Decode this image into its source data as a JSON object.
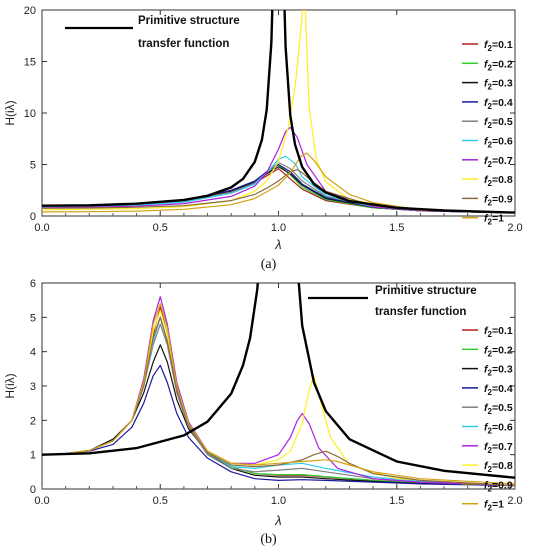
{
  "chart_data": [
    {
      "type": "line",
      "panel_caption": "(a)",
      "xlabel": "λ",
      "ylabel": "H(iλ)",
      "xlim": [
        0,
        2.0
      ],
      "ylim": [
        0,
        20
      ],
      "x_ticks": [
        "0.0",
        "0.5",
        "1.0",
        "1.5",
        "2.0"
      ],
      "y_ticks": [
        "0",
        "5",
        "10",
        "15",
        "20"
      ],
      "legend_position": "right",
      "primitive": {
        "label_line1": "Primitive structure",
        "label_line2": "transfer function",
        "color": "#000000",
        "x": [
          0,
          0.2,
          0.4,
          0.6,
          0.7,
          0.8,
          0.85,
          0.9,
          0.93,
          0.95,
          0.97,
          0.98
        ],
        "y": [
          1.0,
          1.04,
          1.19,
          1.56,
          1.96,
          2.78,
          3.6,
          5.26,
          7.4,
          10.3,
          16.9,
          25.3
        ],
        "x2": [
          1.02,
          1.03,
          1.05,
          1.07,
          1.1,
          1.15,
          1.2,
          1.3,
          1.5,
          1.7,
          2.0
        ],
        "y2": [
          24.8,
          16.4,
          9.76,
          6.9,
          4.76,
          3.1,
          2.27,
          1.45,
          0.8,
          0.53,
          0.33
        ]
      },
      "series": [
        {
          "name_base": "f",
          "name_sub": "2",
          "name_val": "=0.1",
          "color": "#b22222",
          "x": [
            0,
            0.2,
            0.4,
            0.6,
            0.8,
            0.9,
            0.95,
            1.0,
            1.05,
            1.1,
            1.2,
            1.4,
            1.6,
            2.0
          ],
          "y": [
            1.0,
            1.04,
            1.18,
            1.5,
            2.4,
            3.2,
            3.9,
            4.6,
            3.6,
            2.6,
            1.5,
            0.8,
            0.5,
            0.3
          ]
        },
        {
          "name_base": "f",
          "name_sub": "2",
          "name_val": "=0.2",
          "color": "#33cc33",
          "x": [
            0,
            0.2,
            0.4,
            0.6,
            0.8,
            0.9,
            0.95,
            1.0,
            1.05,
            1.1,
            1.2,
            1.4,
            1.6,
            2.0
          ],
          "y": [
            1.0,
            1.04,
            1.18,
            1.5,
            2.5,
            3.4,
            4.2,
            5.0,
            4.0,
            2.8,
            1.6,
            0.8,
            0.5,
            0.3
          ]
        },
        {
          "name_base": "f",
          "name_sub": "2",
          "name_val": "=0.3",
          "color": "#111111",
          "x": [
            0,
            0.2,
            0.4,
            0.6,
            0.8,
            0.9,
            0.95,
            1.0,
            1.05,
            1.1,
            1.2,
            1.4,
            1.6,
            2.0
          ],
          "y": [
            1.0,
            1.04,
            1.18,
            1.5,
            2.45,
            3.3,
            4.1,
            4.8,
            4.1,
            3.0,
            1.7,
            0.85,
            0.5,
            0.3
          ]
        },
        {
          "name_base": "f",
          "name_sub": "2",
          "name_val": "=0.4",
          "color": "#1a1a99",
          "x": [
            0,
            0.2,
            0.4,
            0.6,
            0.8,
            0.9,
            0.95,
            1.0,
            1.05,
            1.1,
            1.2,
            1.4,
            1.6,
            2.0
          ],
          "y": [
            1.0,
            1.04,
            1.18,
            1.5,
            2.5,
            3.4,
            4.3,
            5.0,
            4.3,
            3.1,
            1.8,
            0.85,
            0.5,
            0.3
          ]
        },
        {
          "name_base": "f",
          "name_sub": "2",
          "name_val": "=0.5",
          "color": "#808080",
          "x": [
            0,
            0.2,
            0.4,
            0.6,
            0.8,
            0.9,
            0.95,
            1.0,
            1.05,
            1.1,
            1.2,
            1.4,
            1.6,
            2.0
          ],
          "y": [
            0.95,
            1.0,
            1.12,
            1.45,
            2.3,
            3.2,
            4.2,
            5.2,
            4.6,
            3.4,
            1.9,
            0.9,
            0.5,
            0.3
          ]
        },
        {
          "name_base": "f",
          "name_sub": "2",
          "name_val": "=0.6",
          "color": "#33ccee",
          "x": [
            0,
            0.2,
            0.4,
            0.6,
            0.8,
            0.9,
            0.95,
            1.0,
            1.03,
            1.07,
            1.1,
            1.2,
            1.4,
            1.6,
            2.0
          ],
          "y": [
            0.9,
            0.95,
            1.05,
            1.35,
            2.2,
            3.1,
            4.2,
            5.5,
            5.8,
            5.1,
            3.8,
            2.0,
            0.9,
            0.5,
            0.3
          ]
        },
        {
          "name_base": "f",
          "name_sub": "2",
          "name_val": "=0.7",
          "color": "#aa22dd",
          "x": [
            0,
            0.2,
            0.4,
            0.6,
            0.8,
            0.9,
            0.95,
            1.0,
            1.03,
            1.05,
            1.08,
            1.12,
            1.2,
            1.4,
            1.6,
            2.0
          ],
          "y": [
            0.8,
            0.85,
            0.95,
            1.2,
            1.9,
            2.9,
            4.2,
            6.5,
            8.2,
            8.6,
            7.6,
            5.0,
            2.4,
            0.9,
            0.5,
            0.3
          ]
        },
        {
          "name_base": "f",
          "name_sub": "2",
          "name_val": "=0.8",
          "color": "#ffee22",
          "x": [
            0,
            0.2,
            0.4,
            0.6,
            0.8,
            0.9,
            0.95,
            1.0,
            1.04,
            1.07,
            1.09,
            1.11,
            1.13,
            1.16,
            1.2,
            1.3,
            1.5,
            2.0
          ],
          "y": [
            0.6,
            0.65,
            0.72,
            0.9,
            1.5,
            2.4,
            3.4,
            5.3,
            8.5,
            12.5,
            17.0,
            22.0,
            10.5,
            5.5,
            3.3,
            1.6,
            0.8,
            0.3
          ]
        },
        {
          "name_base": "f",
          "name_sub": "2",
          "name_val": "=0.9",
          "color": "#8b6b3a",
          "x": [
            0,
            0.2,
            0.4,
            0.6,
            0.8,
            0.9,
            0.95,
            1.0,
            1.05,
            1.08,
            1.1,
            1.13,
            1.2,
            1.4,
            1.6,
            2.0
          ],
          "y": [
            0.75,
            0.78,
            0.85,
            1.0,
            1.5,
            2.1,
            2.7,
            3.4,
            4.3,
            4.5,
            4.2,
            3.6,
            2.4,
            1.0,
            0.55,
            0.3
          ]
        },
        {
          "name_base": "f",
          "name_sub": "2",
          "name_val": "=1",
          "color": "#d4a017",
          "x": [
            0,
            0.2,
            0.4,
            0.6,
            0.8,
            0.9,
            1.0,
            1.05,
            1.08,
            1.1,
            1.12,
            1.15,
            1.2,
            1.3,
            1.4,
            1.6,
            2.0
          ],
          "y": [
            0.4,
            0.42,
            0.48,
            0.65,
            1.1,
            1.7,
            3.0,
            4.2,
            5.3,
            5.9,
            6.1,
            5.4,
            3.8,
            2.1,
            1.3,
            0.6,
            0.3
          ]
        }
      ]
    },
    {
      "type": "line",
      "panel_caption": "(b)",
      "xlabel": "λ",
      "ylabel": "H(iλ)",
      "xlim": [
        0,
        2.0
      ],
      "ylim": [
        0,
        6
      ],
      "x_ticks": [
        "0.0",
        "0.5",
        "1.0",
        "1.5",
        "2.0"
      ],
      "y_ticks": [
        "0",
        "1",
        "2",
        "3",
        "4",
        "5",
        "6"
      ],
      "legend_position": "right",
      "primitive": {
        "label_line1": "Primitive structure",
        "label_line2": "transfer function",
        "color": "#000000",
        "x": [
          0,
          0.2,
          0.4,
          0.6,
          0.7,
          0.8,
          0.85,
          0.88,
          0.91,
          0.93
        ],
        "y": [
          1.0,
          1.04,
          1.19,
          1.56,
          1.96,
          2.78,
          3.6,
          4.4,
          5.8,
          7.4
        ],
        "x2": [
          1.08,
          1.1,
          1.15,
          1.2,
          1.3,
          1.5,
          1.7,
          2.0
        ],
        "y2": [
          6.5,
          4.76,
          3.1,
          2.27,
          1.45,
          0.8,
          0.53,
          0.33
        ]
      },
      "series": [
        {
          "name_base": "f",
          "name_sub": "2",
          "name_val": "=0.1",
          "color": "#b22222",
          "x": [
            0,
            0.1,
            0.2,
            0.3,
            0.38,
            0.43,
            0.47,
            0.5,
            0.53,
            0.57,
            0.62,
            0.7,
            0.8,
            0.9,
            1.0,
            1.1,
            1.2,
            1.4,
            1.6,
            2.0
          ],
          "y": [
            1.0,
            1.03,
            1.12,
            1.4,
            2.0,
            3.1,
            4.5,
            5.3,
            4.5,
            3.0,
            1.9,
            1.1,
            0.65,
            0.45,
            0.4,
            0.4,
            0.35,
            0.25,
            0.18,
            0.1
          ]
        },
        {
          "name_base": "f",
          "name_sub": "2",
          "name_val": "=0.2",
          "color": "#33cc33",
          "x": [
            0,
            0.1,
            0.2,
            0.3,
            0.38,
            0.43,
            0.47,
            0.5,
            0.53,
            0.57,
            0.62,
            0.7,
            0.8,
            0.9,
            1.0,
            1.1,
            1.2,
            1.4,
            1.6,
            2.0
          ],
          "y": [
            1.0,
            1.03,
            1.12,
            1.4,
            2.0,
            3.0,
            4.4,
            5.0,
            4.3,
            2.9,
            1.85,
            1.1,
            0.65,
            0.45,
            0.42,
            0.42,
            0.36,
            0.25,
            0.18,
            0.1
          ]
        },
        {
          "name_base": "f",
          "name_sub": "2",
          "name_val": "=0.3",
          "color": "#111111",
          "x": [
            0,
            0.1,
            0.2,
            0.3,
            0.38,
            0.43,
            0.47,
            0.5,
            0.53,
            0.57,
            0.62,
            0.7,
            0.8,
            0.9,
            1.0,
            1.1,
            1.2,
            1.4,
            1.6,
            2.0
          ],
          "y": [
            1.0,
            1.03,
            1.12,
            1.45,
            2.0,
            2.8,
            3.7,
            4.2,
            3.7,
            2.6,
            1.75,
            1.05,
            0.6,
            0.4,
            0.35,
            0.35,
            0.3,
            0.22,
            0.16,
            0.1
          ]
        },
        {
          "name_base": "f",
          "name_sub": "2",
          "name_val": "=0.4",
          "color": "#1a1a99",
          "x": [
            0,
            0.1,
            0.2,
            0.3,
            0.38,
            0.43,
            0.47,
            0.5,
            0.53,
            0.57,
            0.62,
            0.7,
            0.8,
            0.9,
            1.0,
            1.1,
            1.2,
            1.4,
            1.6,
            2.0
          ],
          "y": [
            1.0,
            1.03,
            1.1,
            1.3,
            1.8,
            2.5,
            3.3,
            3.6,
            3.1,
            2.2,
            1.5,
            0.9,
            0.5,
            0.3,
            0.25,
            0.27,
            0.25,
            0.2,
            0.15,
            0.1
          ]
        },
        {
          "name_base": "f",
          "name_sub": "2",
          "name_val": "=0.5",
          "color": "#808080",
          "x": [
            0,
            0.1,
            0.2,
            0.3,
            0.38,
            0.43,
            0.47,
            0.5,
            0.53,
            0.57,
            0.62,
            0.7,
            0.8,
            0.9,
            1.0,
            1.1,
            1.2,
            1.4,
            1.6,
            2.0
          ],
          "y": [
            1.0,
            1.03,
            1.12,
            1.4,
            2.0,
            3.0,
            4.2,
            4.8,
            4.2,
            2.8,
            1.8,
            1.0,
            0.6,
            0.5,
            0.55,
            0.6,
            0.5,
            0.3,
            0.2,
            0.1
          ]
        },
        {
          "name_base": "f",
          "name_sub": "2",
          "name_val": "=0.6",
          "color": "#33ccee",
          "x": [
            0,
            0.1,
            0.2,
            0.3,
            0.38,
            0.43,
            0.47,
            0.5,
            0.53,
            0.57,
            0.62,
            0.7,
            0.8,
            0.9,
            1.0,
            1.1,
            1.2,
            1.4,
            1.6,
            2.0
          ],
          "y": [
            1.0,
            1.03,
            1.12,
            1.4,
            2.0,
            3.0,
            4.3,
            5.0,
            4.3,
            2.9,
            1.85,
            1.05,
            0.65,
            0.6,
            0.7,
            0.75,
            0.6,
            0.35,
            0.22,
            0.1
          ]
        },
        {
          "name_base": "f",
          "name_sub": "2",
          "name_val": "=0.7",
          "color": "#aa22dd",
          "x": [
            0,
            0.1,
            0.2,
            0.3,
            0.38,
            0.43,
            0.47,
            0.5,
            0.53,
            0.57,
            0.62,
            0.7,
            0.8,
            0.9,
            1.0,
            1.05,
            1.08,
            1.1,
            1.13,
            1.17,
            1.25,
            1.4,
            1.6,
            2.0
          ],
          "y": [
            1.0,
            1.03,
            1.12,
            1.4,
            2.0,
            3.2,
            4.9,
            5.6,
            4.8,
            3.1,
            1.95,
            1.1,
            0.75,
            0.75,
            1.0,
            1.5,
            2.0,
            2.2,
            1.9,
            1.2,
            0.6,
            0.3,
            0.2,
            0.1
          ]
        },
        {
          "name_base": "f",
          "name_sub": "2",
          "name_val": "=0.8",
          "color": "#ffee22",
          "x": [
            0,
            0.1,
            0.2,
            0.3,
            0.38,
            0.43,
            0.47,
            0.5,
            0.53,
            0.57,
            0.62,
            0.7,
            0.8,
            0.9,
            1.0,
            1.05,
            1.1,
            1.13,
            1.15,
            1.18,
            1.22,
            1.3,
            1.5,
            2.0
          ],
          "y": [
            1.0,
            1.03,
            1.12,
            1.4,
            2.0,
            3.1,
            4.6,
            5.2,
            4.5,
            3.0,
            1.9,
            1.1,
            0.75,
            0.7,
            0.85,
            1.1,
            1.9,
            2.9,
            3.3,
            2.5,
            1.5,
            0.7,
            0.3,
            0.1
          ]
        },
        {
          "name_base": "f",
          "name_sub": "2",
          "name_val": "=0.9",
          "color": "#8b6b3a",
          "x": [
            0,
            0.1,
            0.2,
            0.3,
            0.38,
            0.43,
            0.47,
            0.5,
            0.53,
            0.57,
            0.62,
            0.7,
            0.8,
            0.9,
            1.0,
            1.1,
            1.15,
            1.2,
            1.25,
            1.3,
            1.4,
            1.6,
            2.0
          ],
          "y": [
            1.0,
            1.03,
            1.12,
            1.4,
            2.0,
            3.0,
            4.4,
            5.0,
            4.3,
            2.9,
            1.85,
            1.05,
            0.7,
            0.65,
            0.7,
            0.85,
            1.0,
            1.1,
            0.95,
            0.75,
            0.45,
            0.25,
            0.1
          ]
        },
        {
          "name_base": "f",
          "name_sub": "2",
          "name_val": "=1",
          "color": "#d4a017",
          "x": [
            0,
            0.1,
            0.2,
            0.3,
            0.38,
            0.43,
            0.47,
            0.5,
            0.53,
            0.57,
            0.62,
            0.7,
            0.8,
            0.9,
            1.0,
            1.1,
            1.2,
            1.25,
            1.3,
            1.4,
            1.6,
            2.0
          ],
          "y": [
            1.0,
            1.03,
            1.12,
            1.4,
            2.0,
            3.1,
            4.8,
            5.4,
            4.7,
            3.0,
            1.9,
            1.1,
            0.75,
            0.7,
            0.75,
            0.8,
            0.85,
            0.8,
            0.7,
            0.5,
            0.3,
            0.15
          ]
        }
      ]
    }
  ]
}
